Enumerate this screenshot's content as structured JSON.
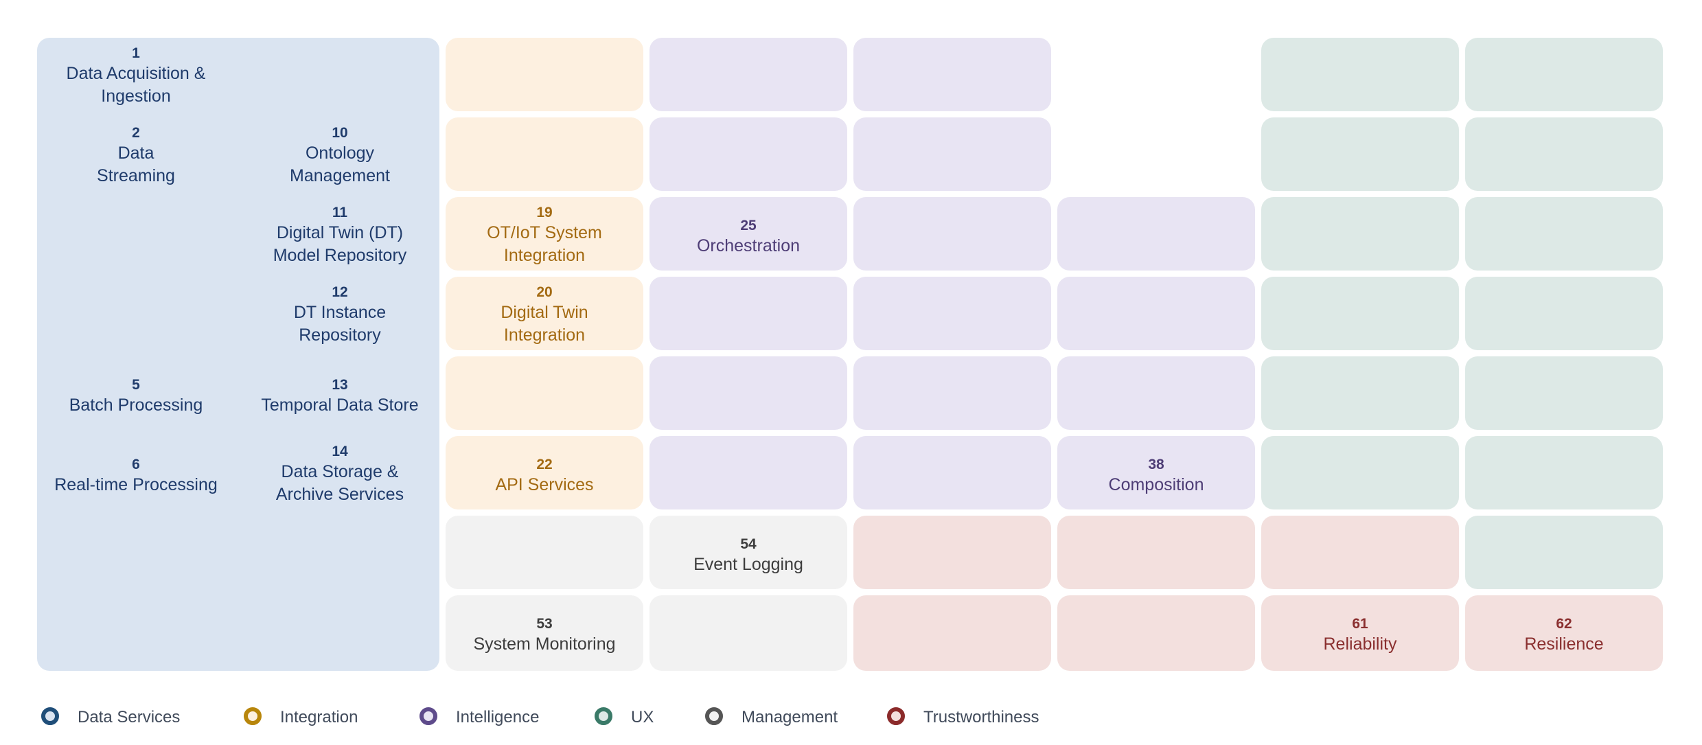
{
  "colors": {
    "data_services": {
      "ring": "#1f4e79",
      "fill": "#dae4f1",
      "text": "#1f3b6b"
    },
    "integration": {
      "ring": "#b8860b",
      "fill": "#fdf0e0",
      "text": "#a36a12"
    },
    "intelligence": {
      "ring": "#5e4b8b",
      "fill": "#e8e4f3",
      "text": "#4e3d76"
    },
    "ux": {
      "ring": "#3a7a68",
      "fill": "#dde9e6"
    },
    "management": {
      "ring": "#555555",
      "fill": "#f2f2f2",
      "text": "#3d3d3d"
    },
    "trustworthiness": {
      "ring": "#8b2a2a",
      "fill": "#f3e0de",
      "text": "#8a2f2f"
    }
  },
  "tiles": {
    "t1": {
      "num": "1",
      "line1": "Data Acquisition &",
      "line2": "Ingestion"
    },
    "t2": {
      "num": "2",
      "line1": "Data",
      "line2": "Streaming"
    },
    "t5": {
      "num": "5",
      "line1": "Batch Processing"
    },
    "t6": {
      "num": "6",
      "line1": "Real-time Processing"
    },
    "t10": {
      "num": "10",
      "line1": "Ontology",
      "line2": "Management"
    },
    "t11": {
      "num": "11",
      "line1": "Digital Twin (DT)",
      "line2": "Model Repository"
    },
    "t12": {
      "num": "12",
      "line1": "DT Instance",
      "line2": "Repository"
    },
    "t13": {
      "num": "13",
      "line1": "Temporal Data Store"
    },
    "t14": {
      "num": "14",
      "line1": "Data Storage &",
      "line2": "Archive Services"
    },
    "t19": {
      "num": "19",
      "line1": "OT/IoT System",
      "line2": "Integration"
    },
    "t20": {
      "num": "20",
      "line1": "Digital Twin",
      "line2": "Integration"
    },
    "t22": {
      "num": "22",
      "line1": "API Services"
    },
    "t25": {
      "num": "25",
      "line1": "Orchestration"
    },
    "t38": {
      "num": "38",
      "line1": "Composition"
    },
    "t53": {
      "num": "53",
      "line1": "System Monitoring"
    },
    "t54": {
      "num": "54",
      "line1": "Event Logging"
    },
    "t61": {
      "num": "61",
      "line1": "Reliability"
    },
    "t62": {
      "num": "62",
      "line1": "Resilience"
    }
  },
  "legend": [
    {
      "key": "data_services",
      "label": "Data Services",
      "icon": "ring-icon"
    },
    {
      "key": "integration",
      "label": "Integration",
      "icon": "ring-icon"
    },
    {
      "key": "intelligence",
      "label": "Intelligence",
      "icon": "ring-icon"
    },
    {
      "key": "ux",
      "label": "UX",
      "icon": "ring-icon"
    },
    {
      "key": "management",
      "label": "Management",
      "icon": "ring-icon"
    },
    {
      "key": "trustworthiness",
      "label": "Trustworthiness",
      "icon": "ring-icon"
    }
  ]
}
